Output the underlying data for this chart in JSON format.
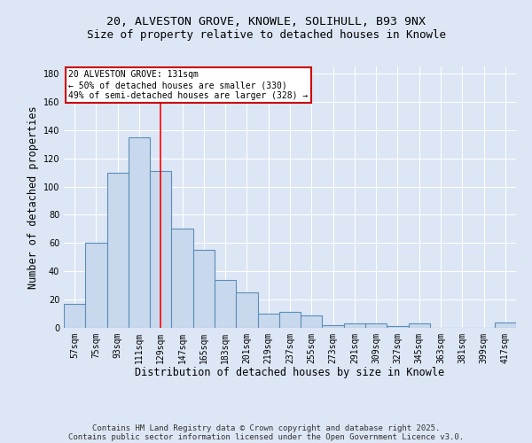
{
  "title_line1": "20, ALVESTON GROVE, KNOWLE, SOLIHULL, B93 9NX",
  "title_line2": "Size of property relative to detached houses in Knowle",
  "xlabel": "Distribution of detached houses by size in Knowle",
  "ylabel": "Number of detached properties",
  "categories": [
    "57sqm",
    "75sqm",
    "93sqm",
    "111sqm",
    "129sqm",
    "147sqm",
    "165sqm",
    "183sqm",
    "201sqm",
    "219sqm",
    "237sqm",
    "255sqm",
    "273sqm",
    "291sqm",
    "309sqm",
    "327sqm",
    "345sqm",
    "363sqm",
    "381sqm",
    "399sqm",
    "417sqm"
  ],
  "values": [
    17,
    60,
    110,
    135,
    111,
    70,
    55,
    34,
    25,
    10,
    11,
    9,
    2,
    3,
    3,
    1,
    3,
    0,
    0,
    0,
    4
  ],
  "bar_color": "#c9d9ed",
  "bar_edge_color": "#5b8db8",
  "bar_edge_width": 0.8,
  "red_line_index": 4,
  "ylim": [
    0,
    185
  ],
  "yticks": [
    0,
    20,
    40,
    60,
    80,
    100,
    120,
    140,
    160,
    180
  ],
  "annotation_box_text": "20 ALVESTON GROVE: 131sqm\n← 50% of detached houses are smaller (330)\n49% of semi-detached houses are larger (328) →",
  "annotation_box_color": "#ffffff",
  "annotation_box_edge_color": "#cc0000",
  "footer_line1": "Contains HM Land Registry data © Crown copyright and database right 2025.",
  "footer_line2": "Contains public sector information licensed under the Open Government Licence v3.0.",
  "background_color": "#dce6f5",
  "plot_bg_color": "#dce6f5",
  "grid_color": "#ffffff",
  "title_fontsize": 9.5,
  "subtitle_fontsize": 9,
  "axis_label_fontsize": 8.5,
  "tick_fontsize": 7,
  "footer_fontsize": 6.5,
  "annotation_fontsize": 7
}
